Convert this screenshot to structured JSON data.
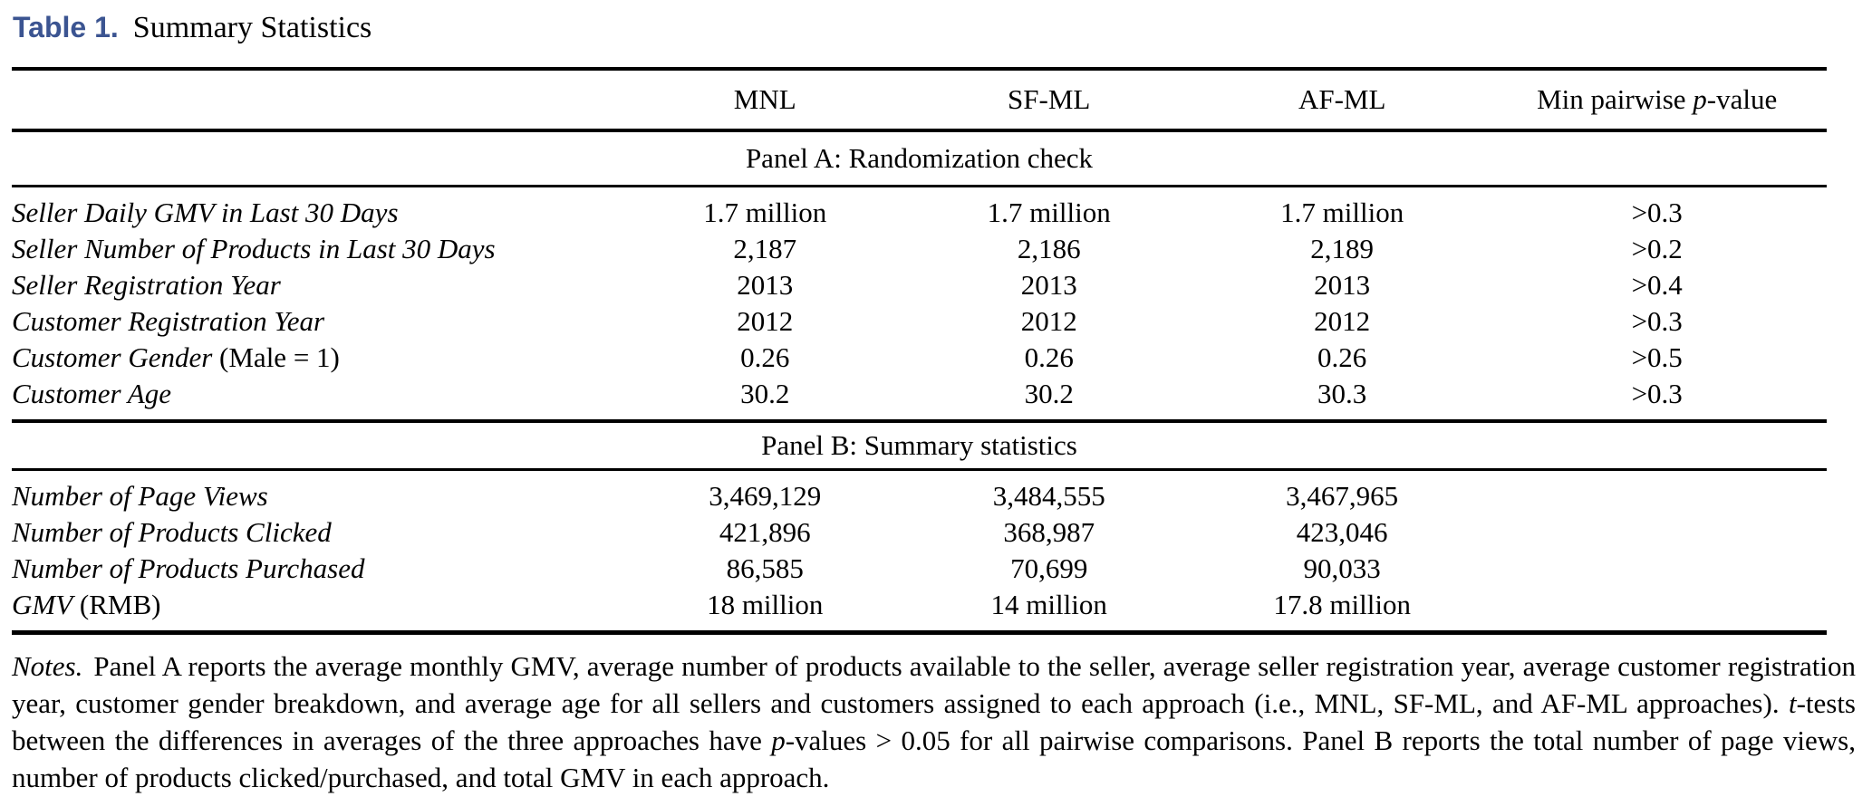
{
  "accent_color": "#3B5491",
  "title": {
    "label": "Table 1.",
    "text": "Summary Statistics"
  },
  "header": {
    "cells": [
      [],
      [
        {
          "t": "MNL"
        }
      ],
      [
        {
          "t": "SF-ML"
        }
      ],
      [
        {
          "t": "AF-ML"
        }
      ],
      [
        {
          "t": "Min pairwise "
        },
        {
          "t": "p",
          "i": true
        },
        {
          "t": "-value"
        }
      ]
    ]
  },
  "panels": [
    {
      "heading": "Panel A: Randomization check",
      "rows": [
        {
          "label": [
            {
              "t": "Seller Daily GMV in Last 30 Days",
              "i": true
            }
          ],
          "values": [
            "1.7 million",
            "1.7 million",
            "1.7 million",
            ">0.3"
          ]
        },
        {
          "label": [
            {
              "t": "Seller Number of Products in Last 30 Days",
              "i": true
            }
          ],
          "values": [
            "2,187",
            "2,186",
            "2,189",
            ">0.2"
          ]
        },
        {
          "label": [
            {
              "t": "Seller Registration Year",
              "i": true
            }
          ],
          "values": [
            "2013",
            "2013",
            "2013",
            ">0.4"
          ]
        },
        {
          "label": [
            {
              "t": "Customer Registration Year",
              "i": true
            }
          ],
          "values": [
            "2012",
            "2012",
            "2012",
            ">0.3"
          ]
        },
        {
          "label": [
            {
              "t": "Customer Gender",
              "i": true
            },
            {
              "t": " (Male = 1)"
            }
          ],
          "values": [
            "0.26",
            "0.26",
            "0.26",
            ">0.5"
          ]
        },
        {
          "label": [
            {
              "t": "Customer Age",
              "i": true
            }
          ],
          "values": [
            "30.2",
            "30.2",
            "30.3",
            ">0.3"
          ]
        }
      ]
    },
    {
      "heading": "Panel B: Summary statistics",
      "rows": [
        {
          "label": [
            {
              "t": "Number of Page Views",
              "i": true
            }
          ],
          "values": [
            "3,469,129",
            "3,484,555",
            "3,467,965",
            ""
          ]
        },
        {
          "label": [
            {
              "t": "Number of Products Clicked",
              "i": true
            }
          ],
          "values": [
            "421,896",
            "368,987",
            "423,046",
            ""
          ]
        },
        {
          "label": [
            {
              "t": "Number of Products Purchased",
              "i": true
            }
          ],
          "values": [
            "86,585",
            "70,699",
            "90,033",
            ""
          ]
        },
        {
          "label": [
            {
              "t": "GMV",
              "i": true
            },
            {
              "t": " (RMB)"
            }
          ],
          "values": [
            "18 million",
            "14 million",
            "17.8 million",
            ""
          ]
        }
      ]
    }
  ],
  "notes": [
    {
      "t": "Notes.",
      "i": true
    },
    {
      "t": "Panel A reports the average monthly GMV, average number of products available to the seller, average seller registration year, average customer registration year, customer gender breakdown, and average age for all sellers and customers assigned to each approach (i.e., MNL, SF-ML, and AF-ML approaches). "
    },
    {
      "t": "t",
      "i": true
    },
    {
      "t": "-tests between the differences in averages of the three approaches have "
    },
    {
      "t": "p",
      "i": true
    },
    {
      "t": "-values > 0.05 for all pairwise comparisons. Panel B reports the total number of page views, number of products clicked/purchased, and total GMV in each approach."
    }
  ]
}
